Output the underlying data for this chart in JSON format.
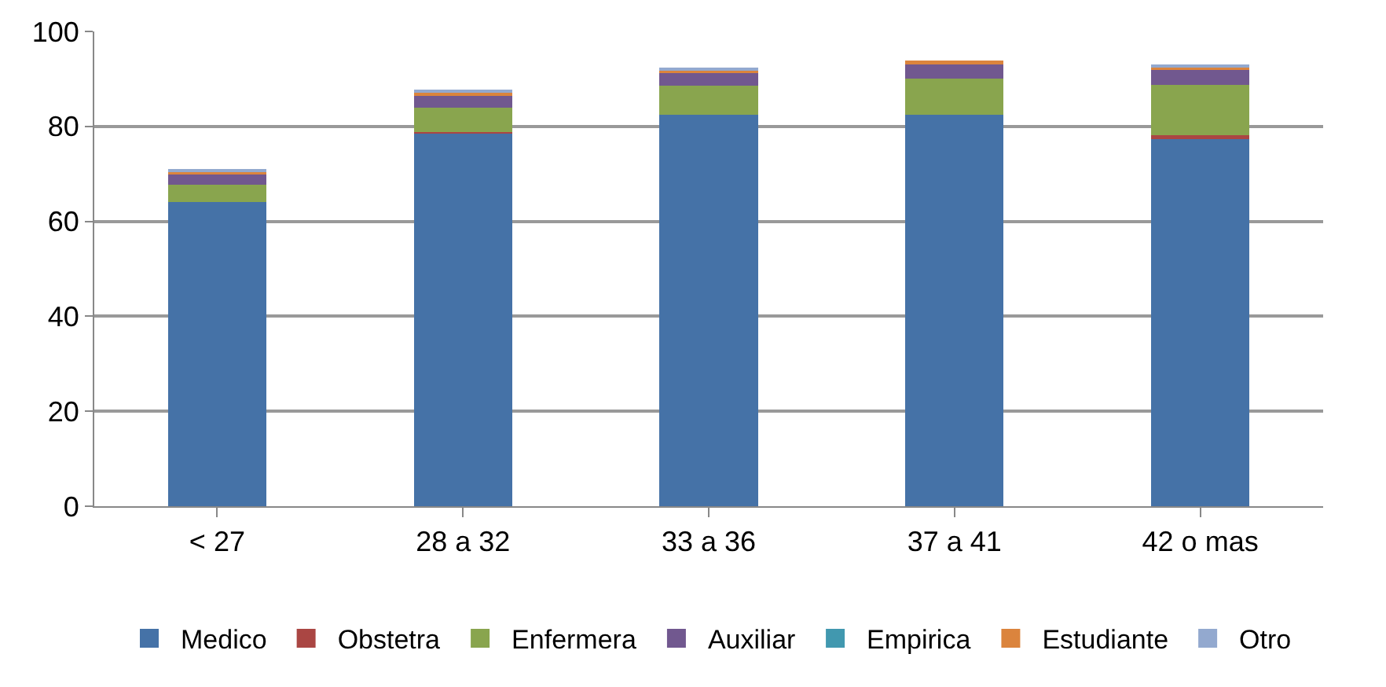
{
  "chart_data": {
    "type": "bar",
    "stacked": true,
    "categories": [
      "< 27",
      "28 a 32",
      "33 a 36",
      "37 a 41",
      "42 o mas"
    ],
    "series": [
      {
        "name": "Medico",
        "color": "#4572a7",
        "values": [
          64,
          78.5,
          82.5,
          82.5,
          77.3
        ]
      },
      {
        "name": "Obstetra",
        "color": "#aa4643",
        "values": [
          null,
          0.3,
          null,
          null,
          0.8
        ]
      },
      {
        "name": "Enfermera",
        "color": "#89a54e",
        "values": [
          3.7,
          5.2,
          6.1,
          7.6,
          10.6
        ]
      },
      {
        "name": "Auxiliar",
        "color": "#71588f",
        "values": [
          2.2,
          2.5,
          2.7,
          3.1,
          3.2
        ]
      },
      {
        "name": "Empirica",
        "color": "#4198af",
        "values": [
          0.2,
          0.2,
          null,
          null,
          null
        ]
      },
      {
        "name": "Estudiante",
        "color": "#db843d",
        "values": [
          0.3,
          0.5,
          0.7,
          0.6,
          0.7
        ]
      },
      {
        "name": "Otro",
        "color": "#93a9cf",
        "values": [
          0.7,
          0.5,
          0.3,
          null,
          0.3
        ]
      }
    ],
    "ylim": [
      0,
      100
    ],
    "yticks": [
      0,
      20,
      40,
      60,
      80,
      100
    ],
    "grid": "y",
    "legend": "bottom"
  }
}
